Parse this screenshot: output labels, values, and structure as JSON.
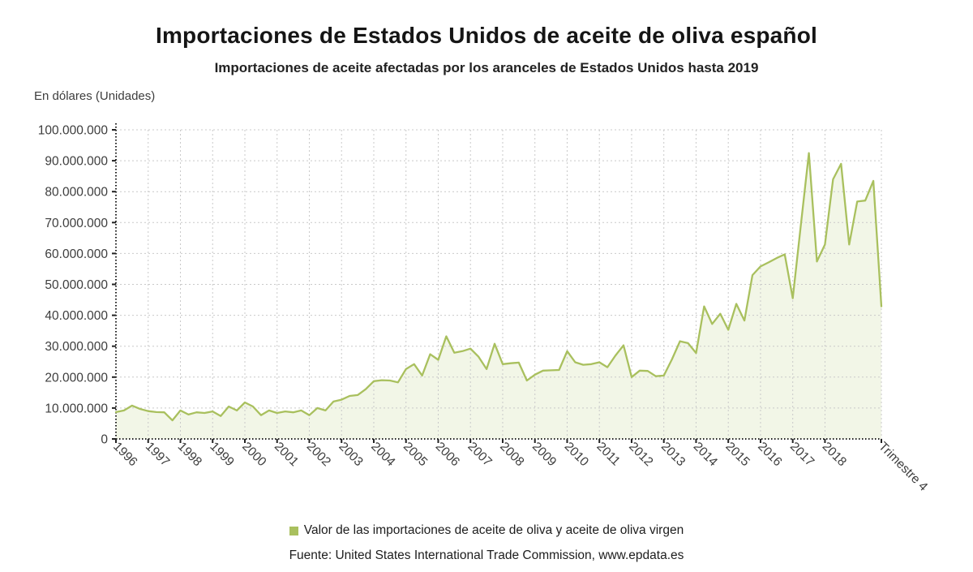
{
  "colors": {
    "line": "#a9c05e",
    "area_fill": "rgba(169,192,94,0.15)",
    "grid": "#c9c9c9",
    "axis": "#222222",
    "tick_text": "#3d3d3d"
  },
  "chart_data": {
    "type": "area",
    "title": "Importaciones de Estados Unidos de aceite de oliva español",
    "subtitle": "Importaciones de aceite afectadas por los aranceles de Estados Unidos hasta 2019",
    "ylabel": "En dólares (Unidades)",
    "ylim": [
      0,
      100000000
    ],
    "y_tick_step": 10000000,
    "grid": true,
    "legend_position": "bottom",
    "frequency": "quarterly",
    "x_start": "1996-T1",
    "x_end": "2019-T4",
    "x_tick_labels": [
      "1996",
      "1997",
      "1998",
      "1999",
      "2000",
      "2001",
      "2002",
      "2003",
      "2004",
      "2005",
      "2006",
      "2007",
      "2008",
      "2009",
      "2010",
      "2011",
      "2012",
      "2013",
      "2014",
      "2015",
      "2016",
      "2017",
      "2018",
      "Trimestre 4"
    ],
    "series": [
      {
        "name": "Valor de las importaciones de aceite de oliva y aceite de oliva virgen",
        "color": "#a9c05e",
        "values": [
          8700000,
          9200000,
          10800000,
          9700000,
          9000000,
          8700000,
          8600000,
          6000000,
          9200000,
          7900000,
          8600000,
          8400000,
          8900000,
          7400000,
          10500000,
          9200000,
          11800000,
          10500000,
          7700000,
          9200000,
          8400000,
          8900000,
          8600000,
          9200000,
          7700000,
          10000000,
          9200000,
          12100000,
          12700000,
          13900000,
          14200000,
          16100000,
          18700000,
          19000000,
          18900000,
          18300000,
          22600000,
          24200000,
          20500000,
          27400000,
          25600000,
          33200000,
          27900000,
          28400000,
          29200000,
          26600000,
          22600000,
          30800000,
          24200000,
          24500000,
          24700000,
          18900000,
          20800000,
          22100000,
          22200000,
          22300000,
          28400000,
          24800000,
          24000000,
          24200000,
          24800000,
          23200000,
          27000000,
          30300000,
          20000000,
          22100000,
          22000000,
          20300000,
          20500000,
          25700000,
          31600000,
          31000000,
          27800000,
          42900000,
          37200000,
          40500000,
          35300000,
          43700000,
          38300000,
          53000000,
          55800000,
          57100000,
          58500000,
          59700000,
          45500000,
          69000000,
          92500000,
          57400000,
          62900000,
          84000000,
          89000000,
          62900000,
          76800000,
          77100000,
          83500000,
          42900000
        ]
      }
    ],
    "source": "Fuente: United States International Trade Commission, www.epdata.es"
  }
}
